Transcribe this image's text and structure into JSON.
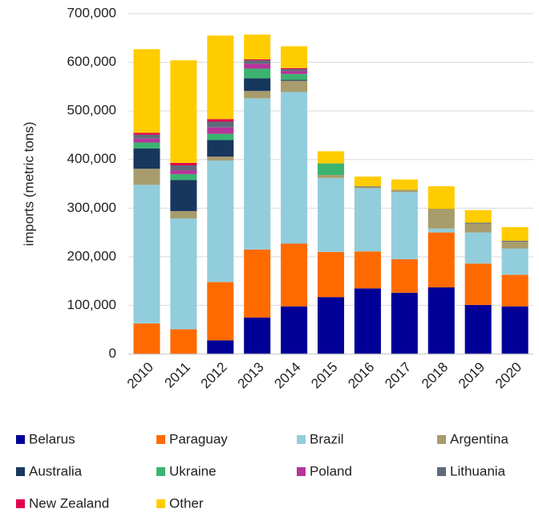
{
  "chart_data": {
    "type": "stacked_bar",
    "y_label": "imports (metric tons)",
    "categories": [
      "2010",
      "2011",
      "2012",
      "2013",
      "2014",
      "2015",
      "2016",
      "2017",
      "2018",
      "2019",
      "2020"
    ],
    "series": [
      {
        "name": "Belarus",
        "color": "#000096",
        "values": [
          0,
          0,
          28000,
          75000,
          98000,
          117000,
          135000,
          126000,
          137000,
          101000,
          98000
        ]
      },
      {
        "name": "Paraguay",
        "color": "#ff6a00",
        "values": [
          63000,
          51000,
          120000,
          140000,
          129000,
          93000,
          76000,
          69000,
          113000,
          85000,
          65000
        ]
      },
      {
        "name": "Brazil",
        "color": "#92cddc",
        "values": [
          285000,
          228000,
          250000,
          311000,
          312000,
          152000,
          130000,
          138000,
          8000,
          64000,
          54000
        ]
      },
      {
        "name": "Argentina",
        "color": "#a89c6c",
        "values": [
          33000,
          15000,
          8000,
          15000,
          23000,
          6000,
          3000,
          5000,
          39000,
          18000,
          14000
        ]
      },
      {
        "name": "Australia",
        "color": "#17375e",
        "values": [
          42000,
          64000,
          34000,
          26000,
          2000,
          0,
          0,
          0,
          0,
          0,
          0
        ]
      },
      {
        "name": "Ukraine",
        "color": "#3cb371",
        "values": [
          12000,
          12000,
          13000,
          20000,
          12000,
          24000,
          0,
          0,
          0,
          0,
          0
        ]
      },
      {
        "name": "Poland",
        "color": "#b8339a",
        "values": [
          8000,
          8000,
          13000,
          10000,
          6000,
          0,
          0,
          0,
          0,
          0,
          0
        ]
      },
      {
        "name": "Lithuania",
        "color": "#5f6b7a",
        "values": [
          8000,
          10000,
          12000,
          7000,
          4000,
          0,
          1000,
          0,
          1000,
          2000,
          2000
        ]
      },
      {
        "name": "New Zealand",
        "color": "#e0004d",
        "values": [
          4000,
          5000,
          5000,
          2000,
          2000,
          0,
          0,
          0,
          0,
          0,
          0
        ]
      },
      {
        "name": "Other",
        "color": "#ffcc00",
        "values": [
          172000,
          211000,
          172000,
          51000,
          45000,
          25000,
          20000,
          21000,
          47000,
          26000,
          28000
        ]
      }
    ],
    "ylim": [
      0,
      700000
    ],
    "yticks": [
      0,
      {
        "value": 100000,
        "label": "100,000"
      },
      {
        "value": 200000,
        "label": "200,000"
      },
      {
        "value": 300000,
        "label": "300,000"
      },
      {
        "value": 400000,
        "label": "400,000"
      },
      {
        "value": 500000,
        "label": "500,000"
      },
      {
        "value": 600000,
        "label": "600,000"
      },
      {
        "value": 700000,
        "label": "700,000"
      }
    ],
    "grid": true,
    "legend": "bottom"
  }
}
